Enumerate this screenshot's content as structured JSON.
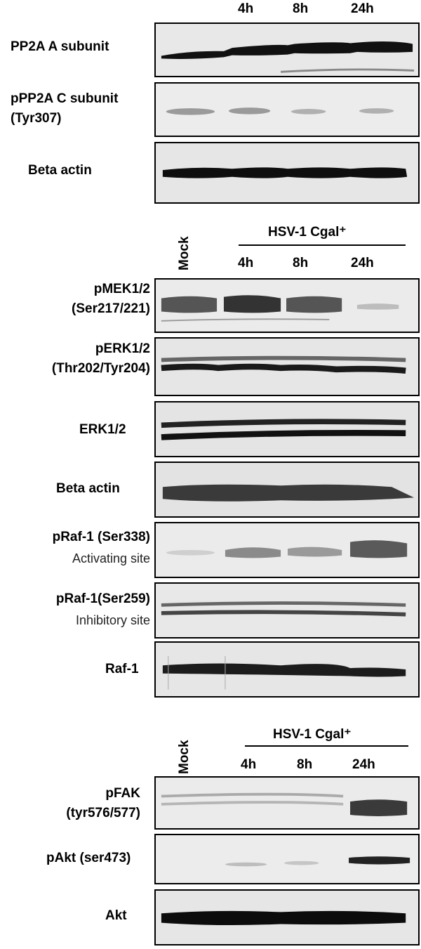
{
  "panel1": {
    "timepoints": [
      "4h",
      "8h",
      "24h"
    ],
    "rows": [
      {
        "label": "PP2A A subunit",
        "sub": ""
      },
      {
        "label": "pPP2A C subunit",
        "sub": "(Tyr307)"
      },
      {
        "label": "Beta actin",
        "sub": ""
      }
    ]
  },
  "panel2": {
    "mock": "Mock",
    "group": "HSV-1 Cgal⁺",
    "timepoints": [
      "4h",
      "8h",
      "24h"
    ],
    "rows": [
      {
        "label": "pMEK1/2",
        "sub": "(Ser217/221)"
      },
      {
        "label": "pERK1/2",
        "sub": "(Thr202/Tyr204)"
      },
      {
        "label": "ERK1/2",
        "sub": ""
      },
      {
        "label": "Beta actin",
        "sub": ""
      },
      {
        "label": "pRaf-1 (Ser338)",
        "sub": "Activating site"
      },
      {
        "label": "pRaf-1(Ser259)",
        "sub": "Inhibitory site"
      },
      {
        "label": "Raf-1",
        "sub": ""
      }
    ]
  },
  "panel3": {
    "mock": "Mock",
    "group": "HSV-1 Cgal⁺",
    "timepoints": [
      "4h",
      "8h",
      "24h"
    ],
    "rows": [
      {
        "label": "pFAK",
        "sub": "(tyr576/577)"
      },
      {
        "label": "pAkt (ser473)",
        "sub": ""
      },
      {
        "label": "Akt",
        "sub": ""
      }
    ]
  }
}
